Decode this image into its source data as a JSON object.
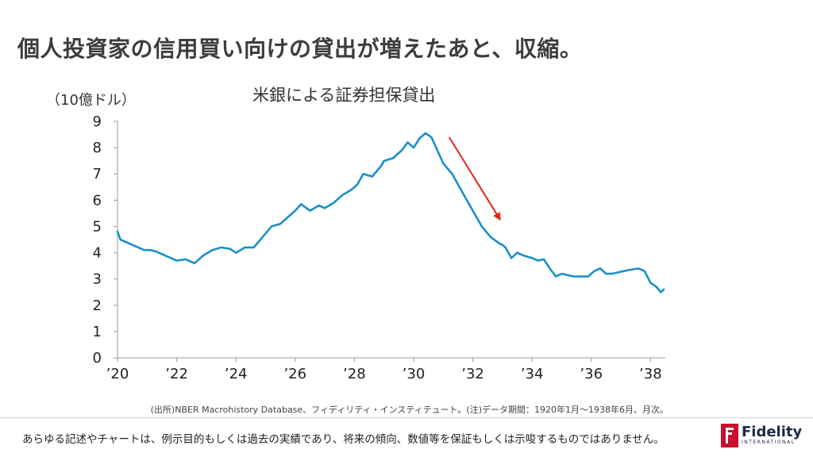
{
  "headline": "個人投資家の信用買い向けの貸出が増えたあと、収縮。",
  "chart_data": {
    "type": "line",
    "title": "米銀による証券担保貸出",
    "ylabel": "（10億ドル）",
    "ylim": [
      0,
      9
    ],
    "y_ticks": [
      "0",
      "1",
      "2",
      "3",
      "4",
      "5",
      "6",
      "7",
      "8",
      "9"
    ],
    "xlim": [
      1920.0,
      1938.5
    ],
    "x_ticks": [
      {
        "value": 1920,
        "label": "’20"
      },
      {
        "value": 1922,
        "label": "’22"
      },
      {
        "value": 1924,
        "label": "’24"
      },
      {
        "value": 1926,
        "label": "’26"
      },
      {
        "value": 1928,
        "label": "’28"
      },
      {
        "value": 1930,
        "label": "’30"
      },
      {
        "value": 1932,
        "label": "’32"
      },
      {
        "value": 1934,
        "label": "’34"
      },
      {
        "value": 1936,
        "label": "’36"
      },
      {
        "value": 1938,
        "label": "’38"
      }
    ],
    "grid": false,
    "legend": "none",
    "line_color": "#1a8fc9",
    "x": [
      1920.0,
      1920.1,
      1920.5,
      1920.9,
      1921.1,
      1921.3,
      1921.6,
      1922.0,
      1922.3,
      1922.6,
      1922.9,
      1923.2,
      1923.5,
      1923.8,
      1924.0,
      1924.3,
      1924.6,
      1924.9,
      1925.2,
      1925.5,
      1925.8,
      1926.0,
      1926.2,
      1926.5,
      1926.8,
      1927.0,
      1927.3,
      1927.6,
      1927.9,
      1928.1,
      1928.3,
      1928.6,
      1928.9,
      1929.0,
      1929.3,
      1929.6,
      1929.8,
      1930.0,
      1930.2,
      1930.4,
      1930.6,
      1930.8,
      1931.0,
      1931.3,
      1931.6,
      1931.9,
      1932.1,
      1932.3,
      1932.6,
      1932.9,
      1933.0,
      1933.1,
      1933.3,
      1933.5,
      1933.7,
      1934.0,
      1934.2,
      1934.4,
      1934.6,
      1934.8,
      1935.0,
      1935.2,
      1935.4,
      1935.6,
      1935.9,
      1936.1,
      1936.3,
      1936.5,
      1936.7,
      1936.9,
      1937.1,
      1937.3,
      1937.6,
      1937.8,
      1938.0,
      1938.2,
      1938.35,
      1938.45
    ],
    "values": [
      4.8,
      4.5,
      4.3,
      4.1,
      4.1,
      4.05,
      3.9,
      3.7,
      3.75,
      3.6,
      3.9,
      4.1,
      4.2,
      4.15,
      4.0,
      4.2,
      4.2,
      4.6,
      5.0,
      5.1,
      5.4,
      5.6,
      5.85,
      5.6,
      5.8,
      5.7,
      5.9,
      6.2,
      6.4,
      6.6,
      7.0,
      6.9,
      7.3,
      7.5,
      7.6,
      7.9,
      8.2,
      8.0,
      8.35,
      8.55,
      8.4,
      7.9,
      7.4,
      7.0,
      6.4,
      5.8,
      5.4,
      5.0,
      4.6,
      4.35,
      4.3,
      4.2,
      3.8,
      4.0,
      3.9,
      3.8,
      3.7,
      3.75,
      3.4,
      3.1,
      3.2,
      3.15,
      3.1,
      3.1,
      3.1,
      3.3,
      3.4,
      3.2,
      3.2,
      3.25,
      3.3,
      3.35,
      3.4,
      3.3,
      2.85,
      2.7,
      2.5,
      2.6
    ],
    "annotations": [
      {
        "type": "arrow",
        "color": "#e8231c",
        "from": {
          "x": 1931.2,
          "y": 8.4
        },
        "to": {
          "x": 1932.9,
          "y": 5.3
        }
      }
    ]
  },
  "source_note": "(出所)NBER Macrohistory Database、フィディリティ・インスティテュート。(注)データ期間：1920年1月～1938年6月、月次。",
  "disclaimer": "あらゆる記述やチャートは、例示目的もしくは過去の実績であり、将来の傾向、数値等を保証もしくは示唆するものではありません。",
  "logo": {
    "word": "Fidelity",
    "sub": "INTERNATIONAL",
    "brand_color": "#c8102e"
  }
}
